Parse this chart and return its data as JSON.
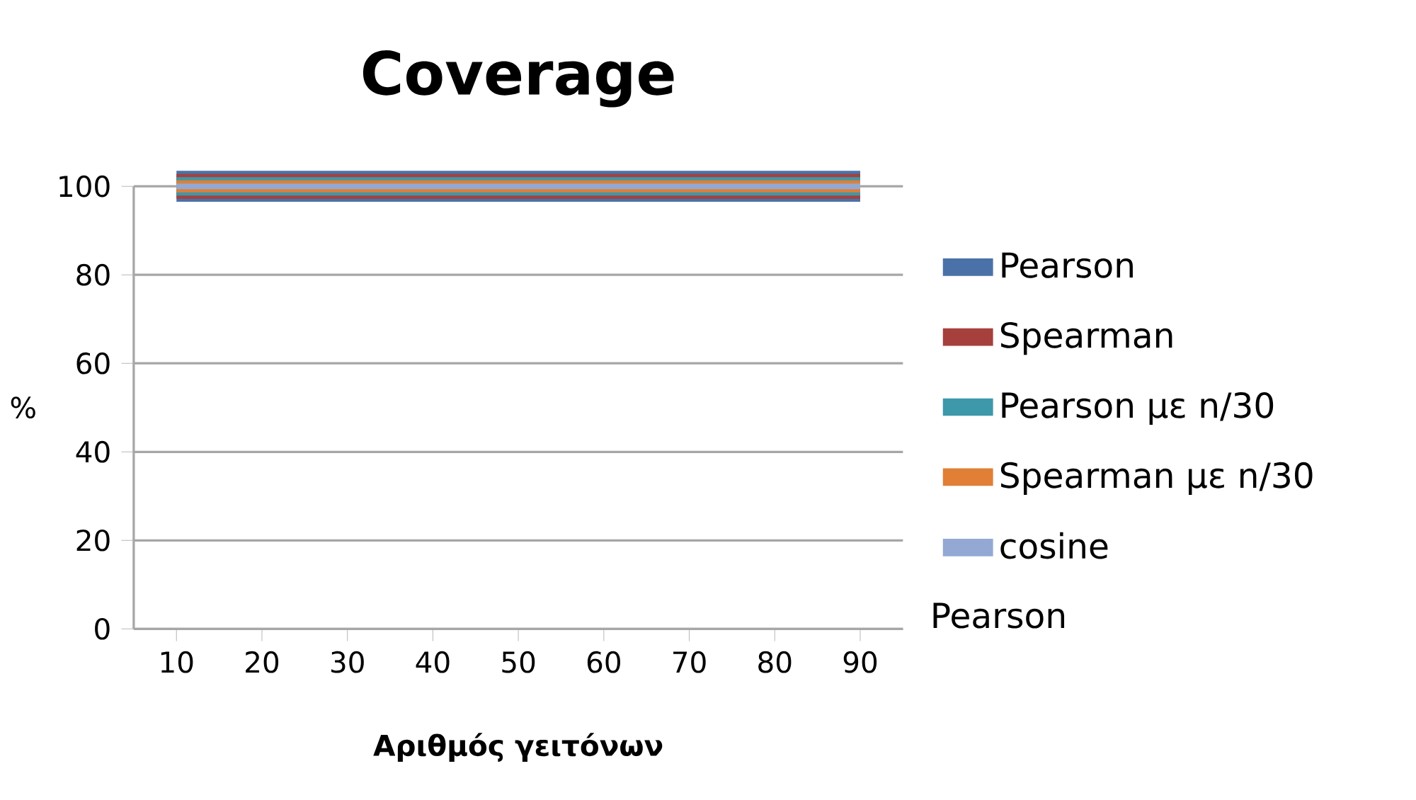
{
  "chart_data": {
    "type": "line",
    "title": "Coverage",
    "xlabel": "Αριθμός γειτόνων",
    "ylabel": "%",
    "categories": [
      "10",
      "20",
      "30",
      "40",
      "50",
      "60",
      "70",
      "80",
      "90"
    ],
    "series": [
      {
        "name": "Pearson",
        "color": "#4a72a8",
        "values": [
          100,
          100,
          100,
          100,
          100,
          100,
          100,
          100,
          100
        ]
      },
      {
        "name": "Spearman",
        "color": "#a6403d",
        "values": [
          100,
          100,
          100,
          100,
          100,
          100,
          100,
          100,
          100
        ]
      },
      {
        "name": "Pearson με n/30",
        "color": "#3d98aa",
        "values": [
          100,
          100,
          100,
          100,
          100,
          100,
          100,
          100,
          100
        ]
      },
      {
        "name": "Spearman με n/30",
        "color": "#e07f35",
        "values": [
          100,
          100,
          100,
          100,
          100,
          100,
          100,
          100,
          100
        ]
      },
      {
        "name": "cosine",
        "color": "#93a9d4",
        "values": [
          100,
          100,
          100,
          100,
          100,
          100,
          100,
          100,
          100
        ]
      }
    ],
    "ylim": [
      0,
      100
    ],
    "yticks": [
      0,
      20,
      40,
      60,
      80,
      100
    ],
    "grid": "y",
    "legend": "right",
    "marker": "none",
    "line_style": "solid",
    "annotations": [
      "Pearson"
    ]
  }
}
